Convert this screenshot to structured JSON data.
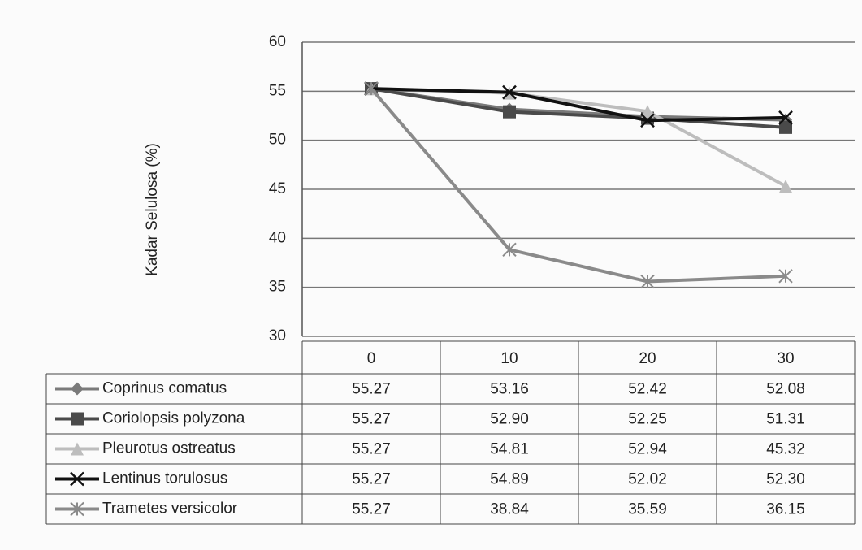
{
  "chart_data": {
    "type": "line",
    "y_label": "Kadar Selulosa (%)",
    "categories": [
      "0",
      "10",
      "20",
      "30"
    ],
    "ylim": [
      30,
      60
    ],
    "yticks": [
      30,
      35,
      40,
      45,
      50,
      55,
      60
    ],
    "grid": true,
    "series": [
      {
        "name": "Coprinus comatus",
        "color": "#7a7a7a",
        "marker": "diamond",
        "values": [
          55.27,
          53.16,
          52.42,
          52.08
        ],
        "value_labels": [
          "55.27",
          "53.16",
          "52.42",
          "52.08"
        ]
      },
      {
        "name": "Coriolopsis polyzona",
        "color": "#4a4a4a",
        "marker": "square",
        "values": [
          55.27,
          52.9,
          52.25,
          51.31
        ],
        "value_labels": [
          "55.27",
          "52.90",
          "52.25",
          "51.31"
        ]
      },
      {
        "name": "Pleurotus ostreatus",
        "color": "#bdbdbd",
        "marker": "triangle",
        "values": [
          55.27,
          54.81,
          52.94,
          45.32
        ],
        "value_labels": [
          "55.27",
          "54.81",
          "52.94",
          "45.32"
        ]
      },
      {
        "name": "Lentinus torulosus",
        "color": "#111111",
        "marker": "x",
        "values": [
          55.27,
          54.89,
          52.02,
          52.3
        ],
        "value_labels": [
          "55.27",
          "54.89",
          "52.02",
          "52.30"
        ]
      },
      {
        "name": "Trametes versicolor",
        "color": "#8a8a8a",
        "marker": "star",
        "values": [
          55.27,
          38.84,
          35.59,
          36.15
        ],
        "value_labels": [
          "55.27",
          "38.84",
          "35.59",
          "36.15"
        ]
      }
    ]
  }
}
